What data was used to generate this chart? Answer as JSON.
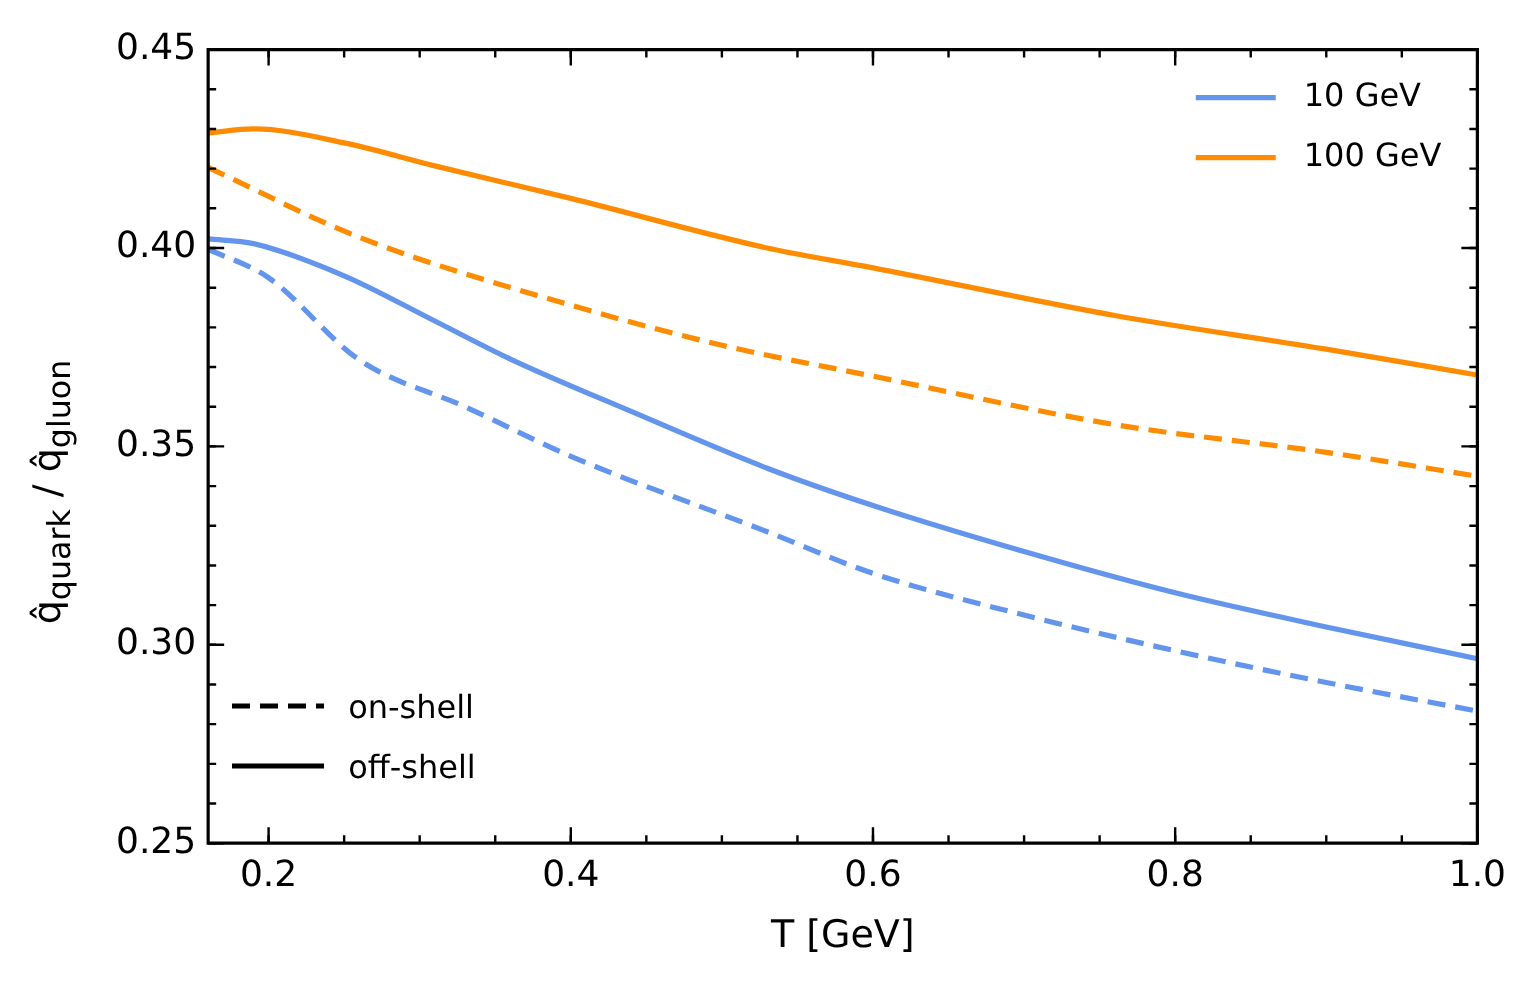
{
  "chart_data": {
    "type": "line",
    "xlabel": "T [GeV]",
    "ylabel": "q̂$_{quark}$ / q̂$_{gluon}$",
    "xlim": [
      0.16,
      1.0
    ],
    "ylim": [
      0.25,
      0.45
    ],
    "xticks": [
      0.2,
      0.4,
      0.6,
      0.8,
      {
        "value": 1.0,
        "label": "1.0"
      }
    ],
    "yticks": [
      0.25,
      {
        "value": 0.3,
        "label": "0.30"
      },
      0.35,
      {
        "value": 0.4,
        "label": "0.40"
      },
      0.45
    ],
    "grid": false,
    "legend": "top right",
    "marker": "none",
    "annotations": [
      "on-shell",
      "off-shell"
    ],
    "series": [
      {
        "name": "10 GeV",
        "color": "#6495ed",
        "line_style": "solid",
        "x": [
          0.16,
          0.19,
          0.25,
          0.31,
          0.36,
          0.44,
          0.53,
          0.6,
          0.7,
          0.8,
          0.9,
          1.0
        ],
        "values": [
          0.4023,
          0.4011,
          0.393,
          0.3816,
          0.372,
          0.3588,
          0.3445,
          0.3351,
          0.3235,
          0.3131,
          0.3045,
          0.2965
        ]
      },
      {
        "name": "100 GeV",
        "color": "#ff8c00",
        "line_style": "solid",
        "x": [
          0.16,
          0.19,
          0.25,
          0.31,
          0.4,
          0.53,
          0.6,
          0.76,
          0.9,
          1.0
        ],
        "values": [
          0.429,
          0.43,
          0.4265,
          0.4207,
          0.4125,
          0.4,
          0.395,
          0.383,
          0.3745,
          0.368
        ]
      },
      {
        "color": "#6495ed",
        "line_style": "dashed",
        "x": [
          0.16,
          0.2,
          0.26,
          0.33,
          0.4,
          0.53,
          0.6,
          0.7,
          0.8,
          0.9,
          1.0
        ],
        "values": [
          0.3997,
          0.3925,
          0.3718,
          0.36,
          0.3475,
          0.3285,
          0.318,
          0.3075,
          0.2985,
          0.2905,
          0.2833
        ]
      },
      {
        "color": "#ff8c00",
        "line_style": "dashed",
        "x": [
          0.16,
          0.26,
          0.4,
          0.5,
          0.6,
          0.76,
          0.9,
          1.0
        ],
        "values": [
          0.4203,
          0.4027,
          0.3856,
          0.3755,
          0.3677,
          0.3555,
          0.3485,
          0.3425
        ]
      }
    ]
  }
}
